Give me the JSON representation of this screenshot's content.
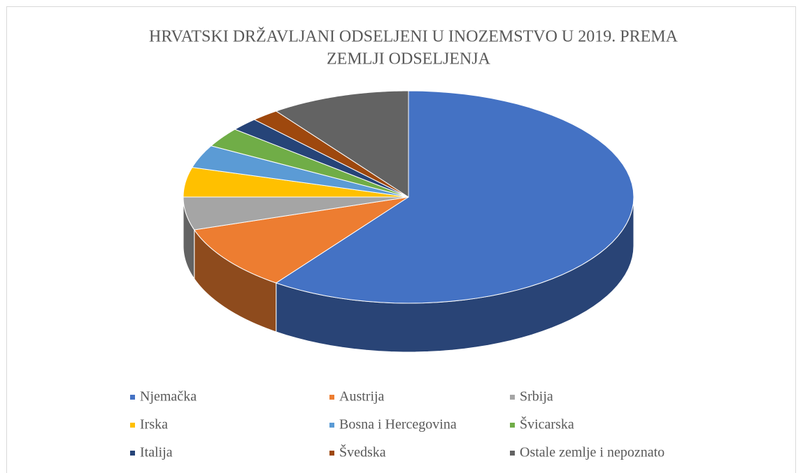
{
  "chart_data": {
    "type": "pie3d",
    "title": [
      "HRVATSKI DRŽAVLJANI ODSELJENI U INOZEMSTVO U 2019. PREMA",
      "ZEMLJI ODSELJENJA"
    ],
    "categories": [
      "Njemačka",
      "Austrija",
      "Srbija",
      "Irska",
      "Bosna i Hercegovina",
      "Švicarska",
      "Italija",
      "Švedska",
      "Ostale zemlje i nepoznato"
    ],
    "values": [
      60,
      10,
      5,
      4.5,
      3.5,
      3,
      2,
      2,
      10
    ],
    "colors": [
      "#4472c4",
      "#ed7d31",
      "#a5a5a5",
      "#ffc000",
      "#5b9bd5",
      "#70ad47",
      "#264478",
      "#9e480e",
      "#636363"
    ],
    "legend": "bottom"
  }
}
